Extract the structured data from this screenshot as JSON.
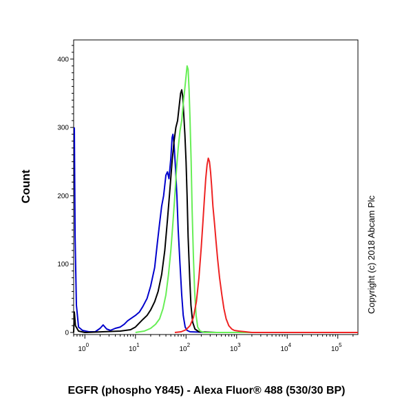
{
  "chart_data": {
    "type": "line",
    "xlabel": "EGFR (phospho Y845) - Alexa Fluor® 488 (530/30 BP)",
    "ylabel": "Count",
    "annotation": "Copyright (c) 2018 Abcam Plc",
    "x_scale": "log",
    "xlim": [
      0.6,
      250000
    ],
    "ylim": [
      0,
      420
    ],
    "y_ticks": [
      0,
      100,
      200,
      300,
      400
    ],
    "x_ticks": [
      {
        "value": 1,
        "base": "10",
        "exp": "0"
      },
      {
        "value": 10,
        "base": "10",
        "exp": "1"
      },
      {
        "value": 100,
        "base": "10",
        "exp": "2"
      },
      {
        "value": 1000,
        "base": "10",
        "exp": "3"
      },
      {
        "value": 10000,
        "base": "10",
        "exp": "4"
      },
      {
        "value": 100000,
        "base": "10",
        "exp": "5"
      }
    ],
    "grid": false,
    "series": [
      {
        "color": "#0000cc",
        "points": [
          [
            0.62,
            300
          ],
          [
            0.64,
            140
          ],
          [
            0.68,
            40
          ],
          [
            0.75,
            8
          ],
          [
            0.9,
            3
          ],
          [
            1.2,
            1
          ],
          [
            1.6,
            1
          ],
          [
            2.0,
            6
          ],
          [
            2.3,
            11
          ],
          [
            2.7,
            5
          ],
          [
            3.2,
            3
          ],
          [
            4,
            6
          ],
          [
            5,
            8
          ],
          [
            6,
            12
          ],
          [
            7,
            17
          ],
          [
            8,
            20
          ],
          [
            10,
            25
          ],
          [
            12,
            30
          ],
          [
            14,
            38
          ],
          [
            17,
            50
          ],
          [
            20,
            68
          ],
          [
            24,
            95
          ],
          [
            27,
            130
          ],
          [
            30,
            160
          ],
          [
            33,
            185
          ],
          [
            36,
            200
          ],
          [
            40,
            230
          ],
          [
            43,
            235
          ],
          [
            46,
            225
          ],
          [
            50,
            255
          ],
          [
            53,
            285
          ],
          [
            55,
            290
          ],
          [
            58,
            275
          ],
          [
            62,
            240
          ],
          [
            66,
            200
          ],
          [
            70,
            150
          ],
          [
            76,
            100
          ],
          [
            82,
            55
          ],
          [
            88,
            25
          ],
          [
            96,
            8
          ],
          [
            105,
            3
          ],
          [
            120,
            1
          ],
          [
            300,
            0
          ],
          [
            250000,
            0
          ]
        ]
      },
      {
        "color": "#000000",
        "points": [
          [
            0.6,
            0
          ],
          [
            0.62,
            30
          ],
          [
            0.65,
            10
          ],
          [
            0.75,
            2
          ],
          [
            1,
            0
          ],
          [
            5,
            2
          ],
          [
            8,
            4
          ],
          [
            10,
            8
          ],
          [
            12,
            14
          ],
          [
            14,
            19
          ],
          [
            17,
            25
          ],
          [
            20,
            33
          ],
          [
            24,
            45
          ],
          [
            28,
            60
          ],
          [
            33,
            85
          ],
          [
            38,
            120
          ],
          [
            43,
            165
          ],
          [
            48,
            210
          ],
          [
            53,
            250
          ],
          [
            58,
            280
          ],
          [
            63,
            300
          ],
          [
            68,
            310
          ],
          [
            73,
            330
          ],
          [
            78,
            350
          ],
          [
            82,
            355
          ],
          [
            86,
            345
          ],
          [
            90,
            320
          ],
          [
            95,
            290
          ],
          [
            100,
            250
          ],
          [
            105,
            200
          ],
          [
            110,
            140
          ],
          [
            118,
            80
          ],
          [
            125,
            40
          ],
          [
            135,
            15
          ],
          [
            150,
            5
          ],
          [
            180,
            1
          ],
          [
            400,
            0
          ],
          [
            250000,
            0
          ]
        ]
      },
      {
        "color": "#66ee55",
        "points": [
          [
            10,
            0
          ],
          [
            15,
            2
          ],
          [
            20,
            6
          ],
          [
            25,
            12
          ],
          [
            30,
            20
          ],
          [
            35,
            35
          ],
          [
            40,
            55
          ],
          [
            45,
            85
          ],
          [
            50,
            120
          ],
          [
            55,
            160
          ],
          [
            60,
            200
          ],
          [
            65,
            240
          ],
          [
            70,
            270
          ],
          [
            76,
            295
          ],
          [
            82,
            310
          ],
          [
            88,
            335
          ],
          [
            94,
            355
          ],
          [
            100,
            375
          ],
          [
            105,
            390
          ],
          [
            110,
            385
          ],
          [
            115,
            355
          ],
          [
            120,
            310
          ],
          [
            126,
            250
          ],
          [
            132,
            180
          ],
          [
            140,
            110
          ],
          [
            148,
            60
          ],
          [
            158,
            25
          ],
          [
            170,
            8
          ],
          [
            190,
            2
          ],
          [
            230,
            0
          ],
          [
            250000,
            0
          ]
        ]
      },
      {
        "color": "#ee2222",
        "points": [
          [
            60,
            0
          ],
          [
            80,
            1
          ],
          [
            100,
            4
          ],
          [
            120,
            10
          ],
          [
            140,
            22
          ],
          [
            160,
            45
          ],
          [
            180,
            80
          ],
          [
            200,
            125
          ],
          [
            215,
            160
          ],
          [
            230,
            195
          ],
          [
            245,
            225
          ],
          [
            260,
            245
          ],
          [
            275,
            255
          ],
          [
            290,
            250
          ],
          [
            305,
            235
          ],
          [
            320,
            215
          ],
          [
            340,
            185
          ],
          [
            365,
            160
          ],
          [
            390,
            135
          ],
          [
            420,
            108
          ],
          [
            460,
            80
          ],
          [
            510,
            55
          ],
          [
            560,
            35
          ],
          [
            620,
            20
          ],
          [
            700,
            10
          ],
          [
            800,
            5
          ],
          [
            900,
            3
          ],
          [
            1100,
            2
          ],
          [
            1500,
            1
          ],
          [
            2000,
            0
          ],
          [
            250000,
            0
          ]
        ]
      }
    ]
  }
}
